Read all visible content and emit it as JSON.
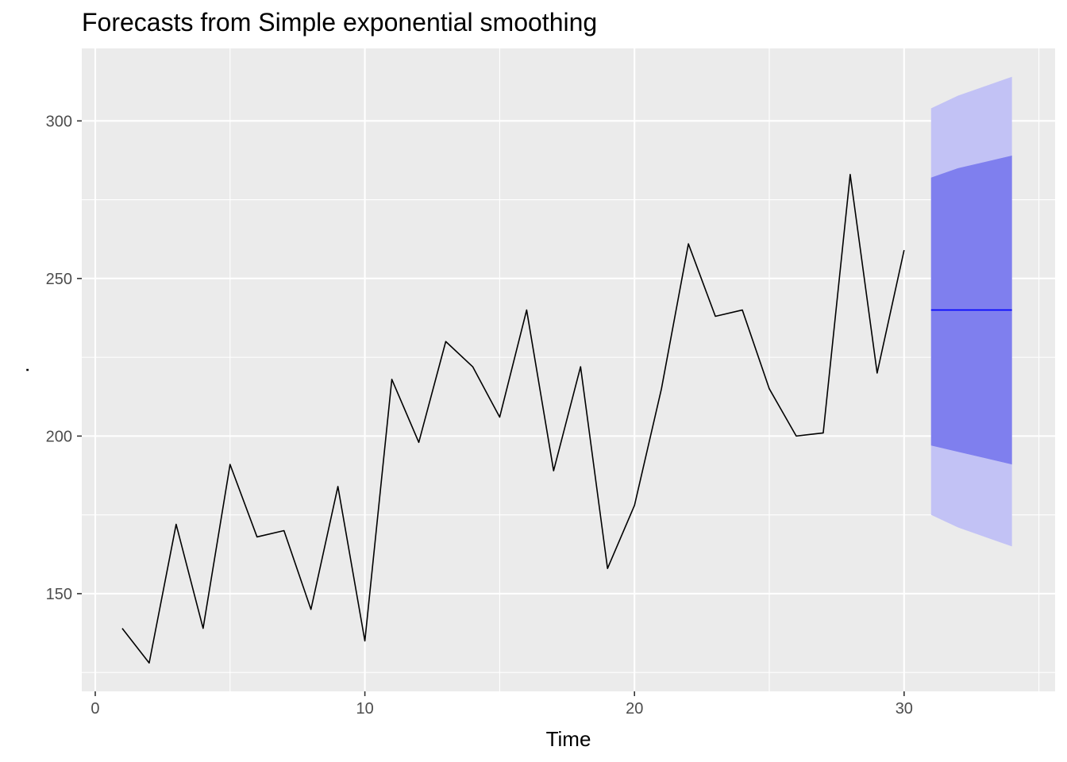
{
  "chart_data": {
    "type": "line",
    "title": "Forecasts from Simple exponential smoothing",
    "xlabel": "Time",
    "ylabel": ".",
    "xlim": [
      -0.5,
      35.6
    ],
    "ylim": [
      119,
      323
    ],
    "x_ticks": [
      0,
      10,
      20,
      30
    ],
    "x_tick_labels": [
      "0",
      "10",
      "20",
      "30"
    ],
    "y_ticks": [
      150,
      200,
      250,
      300
    ],
    "y_tick_labels": [
      "150",
      "200",
      "250",
      "300"
    ],
    "grid": true,
    "legend": "none",
    "series": [
      {
        "x": [
          1,
          2,
          3,
          4,
          5,
          6,
          7,
          8,
          9,
          10,
          11,
          12,
          13,
          14,
          15,
          16,
          17,
          18,
          19,
          20,
          21,
          22,
          23,
          24,
          25,
          26,
          27,
          28,
          29,
          30
        ],
        "values": [
          139,
          128,
          172,
          139,
          191,
          168,
          170,
          145,
          184,
          135,
          218,
          198,
          230,
          222,
          206,
          240,
          189,
          222,
          158,
          178,
          215,
          261,
          238,
          240,
          215,
          200,
          201,
          283,
          220,
          259
        ]
      },
      {
        "x": [
          31,
          32,
          33,
          34
        ],
        "point_forecast": [
          240,
          240,
          240,
          240
        ],
        "lo80": [
          197,
          195,
          193,
          191
        ],
        "hi80": [
          282,
          285,
          287,
          289
        ],
        "lo95": [
          175,
          171,
          168,
          165
        ],
        "hi95": [
          304,
          308,
          311,
          314
        ]
      }
    ],
    "colors": {
      "panel": "#ebebeb",
      "grid": "#ffffff",
      "series": "#000000",
      "forecast": "#0000ff",
      "band80": "#7f7fee",
      "band95": "#c2c2f5"
    }
  }
}
